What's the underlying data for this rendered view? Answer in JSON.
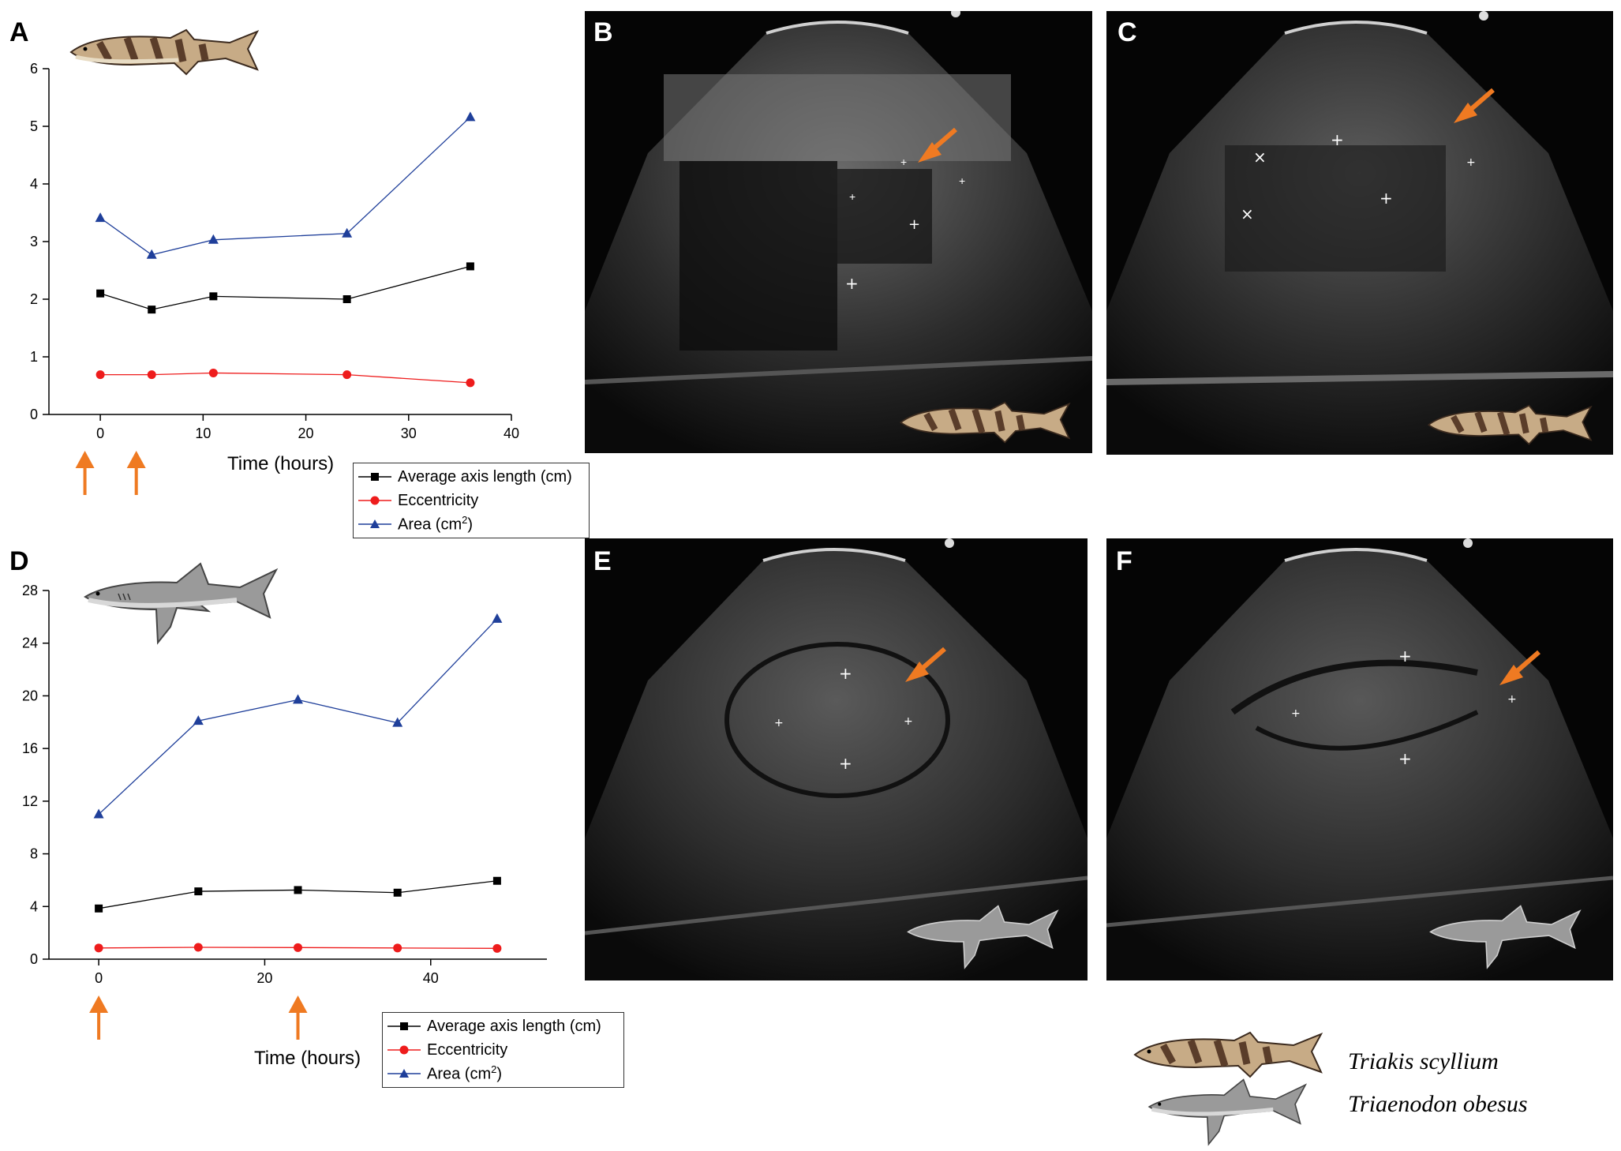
{
  "panels": {
    "A": "A",
    "B": "B",
    "C": "C",
    "D": "D",
    "E": "E",
    "F": "F"
  },
  "legend_labels": {
    "axis": "Average axis length (cm)",
    "ecc": "Eccentricity",
    "area": "Area (cm",
    "area_sup": "2",
    "area_close": ")"
  },
  "species": {
    "first": "Triakis scyllium",
    "second": "Triaenodon obesus"
  },
  "colors": {
    "axis_series": "#000000",
    "ecc_series": "#ee1c1c",
    "area_series": "#1f3f9a",
    "arrow": "#ef7a22"
  },
  "chart_data": [
    {
      "panel": "A",
      "type": "line",
      "xlabel": "Time (hours)",
      "ylabel": "",
      "xlim": [
        -5,
        40
      ],
      "ylim": [
        0,
        6
      ],
      "xticks": [
        0,
        10,
        20,
        30,
        40
      ],
      "yticks": [
        0,
        1,
        2,
        3,
        4,
        5,
        6
      ],
      "legend": "bottom-right, outside",
      "grid": false,
      "arrows_at_x": [
        -1.5,
        3.5
      ],
      "series": [
        {
          "name": "Average axis length (cm)",
          "marker": "square",
          "color": "#000000",
          "x": [
            0,
            5,
            11,
            24,
            36
          ],
          "y": [
            2.1,
            1.82,
            2.05,
            2.0,
            2.57
          ]
        },
        {
          "name": "Eccentricity",
          "marker": "circle",
          "color": "#ee1c1c",
          "x": [
            0,
            5,
            11,
            24,
            36
          ],
          "y": [
            0.69,
            0.69,
            0.72,
            0.69,
            0.55
          ]
        },
        {
          "name": "Area (cm2)",
          "marker": "triangle",
          "color": "#1f3f9a",
          "x": [
            0,
            5,
            11,
            24,
            36
          ],
          "y": [
            3.41,
            2.77,
            3.03,
            3.14,
            5.16
          ]
        }
      ]
    },
    {
      "panel": "D",
      "type": "line",
      "xlabel": "Time (hours)",
      "ylabel": "",
      "xlim": [
        -6,
        54
      ],
      "ylim": [
        0,
        28
      ],
      "xticks": [
        0,
        20,
        40
      ],
      "yticks": [
        0,
        4,
        8,
        12,
        16,
        20,
        24,
        28
      ],
      "legend": "bottom-right, outside",
      "grid": false,
      "arrows_at_x": [
        0,
        24
      ],
      "series": [
        {
          "name": "Average axis length (cm)",
          "marker": "square",
          "color": "#000000",
          "x": [
            0,
            12,
            24,
            36,
            48
          ],
          "y": [
            3.85,
            5.15,
            5.25,
            5.05,
            5.95
          ]
        },
        {
          "name": "Eccentricity",
          "marker": "circle",
          "color": "#ee1c1c",
          "x": [
            0,
            12,
            24,
            36,
            48
          ],
          "y": [
            0.85,
            0.9,
            0.88,
            0.85,
            0.82
          ]
        },
        {
          "name": "Area (cm2)",
          "marker": "triangle",
          "color": "#1f3f9a",
          "x": [
            0,
            12,
            24,
            36,
            48
          ],
          "y": [
            11.0,
            18.1,
            19.7,
            17.95,
            25.85
          ]
        }
      ]
    }
  ]
}
